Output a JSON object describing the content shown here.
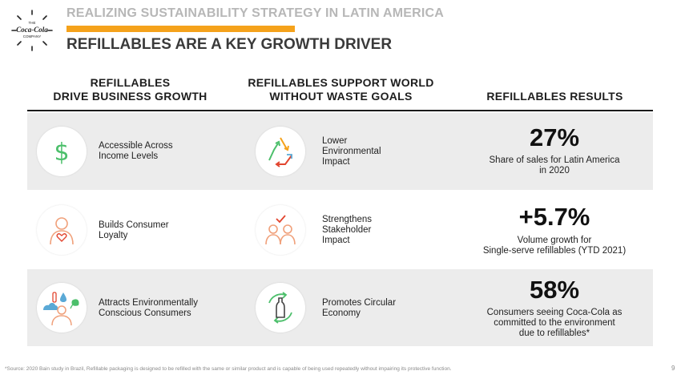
{
  "logo": {
    "line1": "THE",
    "brand": "Coca-Cola",
    "line3": "COMPANY"
  },
  "header": {
    "eyebrow": "REALIZING SUSTAINABILITY STRATEGY IN LATIN AMERICA",
    "title": "REFILLABLES ARE A KEY GROWTH DRIVER",
    "accent_color": "#f5a21b"
  },
  "columns": {
    "col1": {
      "line1": "REFILLABLES",
      "line2": "DRIVE BUSINESS GROWTH"
    },
    "col2": {
      "line1": "REFILLABLES SUPPORT WORLD",
      "line2": "WITHOUT WASTE GOALS"
    },
    "col3": {
      "line1": "REFILLABLES RESULTS"
    }
  },
  "rows": [
    {
      "business": {
        "icon": "dollar-icon",
        "line1": "Accessible Across",
        "line2": "Income Levels"
      },
      "waste": {
        "icon": "recycle-triangle-icon",
        "line1": "Lower",
        "line2": "Environmental",
        "line3": "Impact"
      },
      "result": {
        "value": "27%",
        "line1": "Share of sales for Latin America",
        "line2": "in 2020"
      }
    },
    {
      "business": {
        "icon": "consumer-heart-icon",
        "line1": "Builds Consumer",
        "line2": "Loyalty"
      },
      "waste": {
        "icon": "stakeholders-icon",
        "line1": "Strengthens",
        "line2": "Stakeholder",
        "line3": "Impact"
      },
      "result": {
        "value": "+5.7%",
        "line1": "Volume growth for",
        "line2": "Single-serve refillables (YTD 2021)"
      }
    },
    {
      "business": {
        "icon": "eco-consumer-icon",
        "line1": "Attracts Environmentally",
        "line2": "Conscious Consumers"
      },
      "waste": {
        "icon": "circular-bottle-icon",
        "line1": "Promotes Circular",
        "line2": "Economy"
      },
      "result": {
        "value": "58%",
        "line1": "Consumers seeing Coca-Cola as",
        "line2": "committed to the environment",
        "line3": "due to refillables*"
      }
    }
  ],
  "footnote": "*Source: 2020 Bain study in Brazil, Refillable packaging is designed to be refilled with the same or similar product and is capable of being used repeatedly without impairing its protective function.",
  "page_number": "9"
}
